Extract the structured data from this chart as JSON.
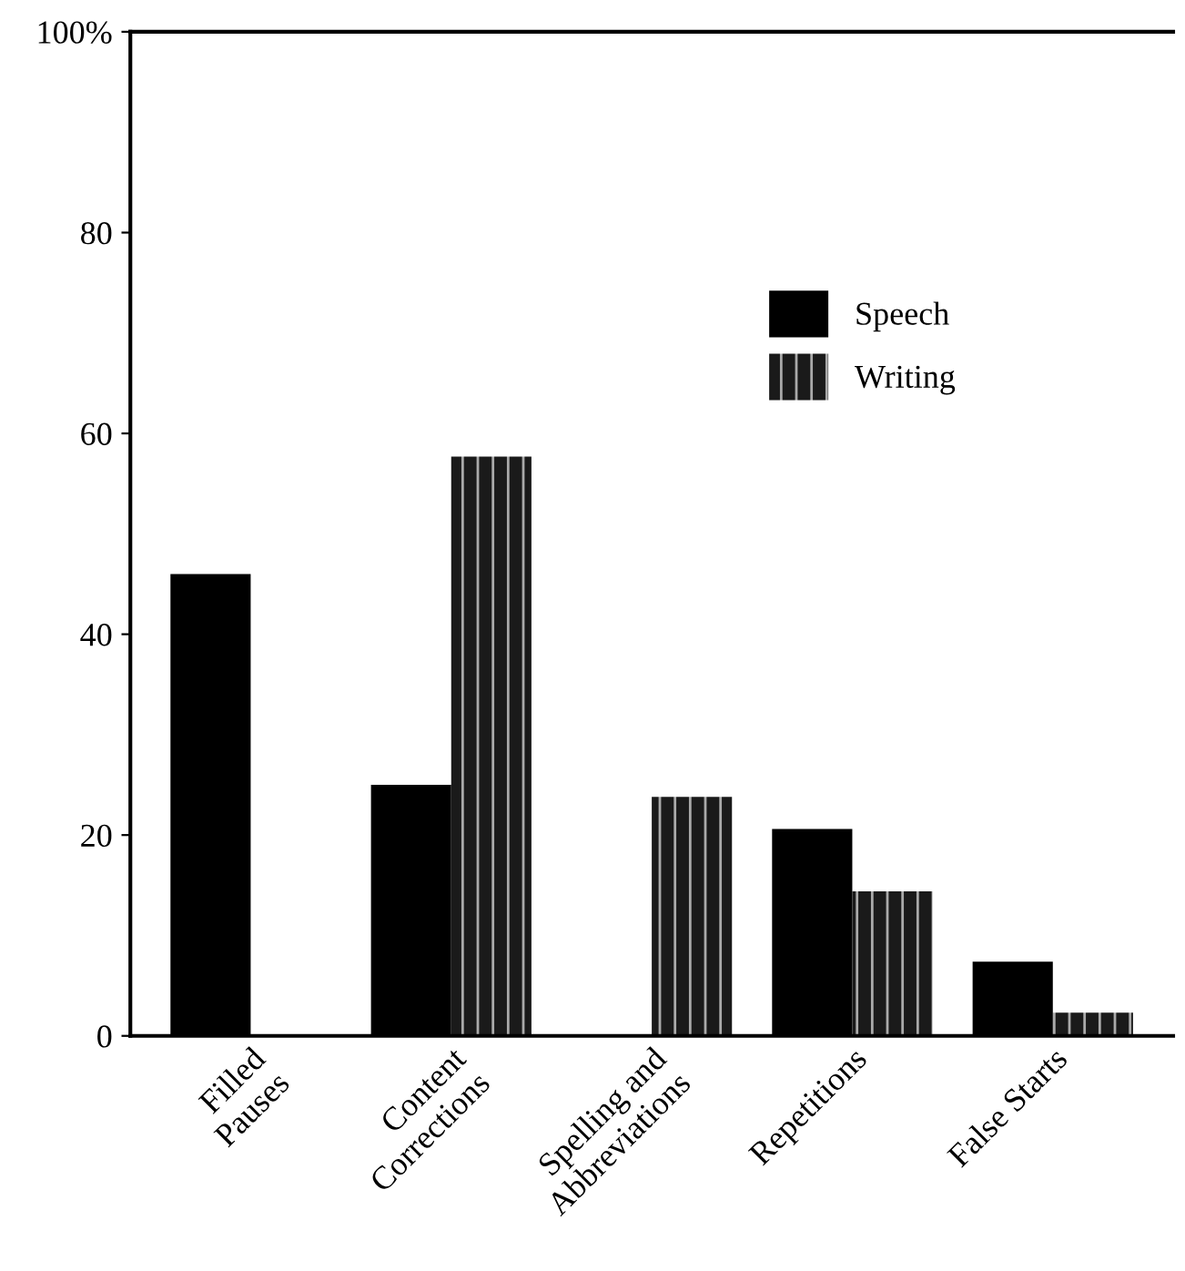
{
  "chart_data": {
    "type": "bar",
    "categories": [
      "Filled\nPauses",
      "Content\nCorrections",
      "Spelling and\nAbbreviations",
      "Repetitions",
      "False Starts"
    ],
    "series": [
      {
        "name": "Speech",
        "color": "#000000",
        "values": [
          46,
          25,
          null,
          20.6,
          7.4
        ]
      },
      {
        "name": "Writing",
        "color": "#1a1a1a",
        "values": [
          null,
          57.7,
          23.8,
          14.4,
          2.3
        ]
      }
    ],
    "ylim": [
      0,
      100
    ],
    "yticks": [
      0,
      20,
      40,
      60,
      80,
      {
        "value": 100,
        "label": "100%"
      }
    ],
    "grid": false,
    "legend": "top right"
  }
}
